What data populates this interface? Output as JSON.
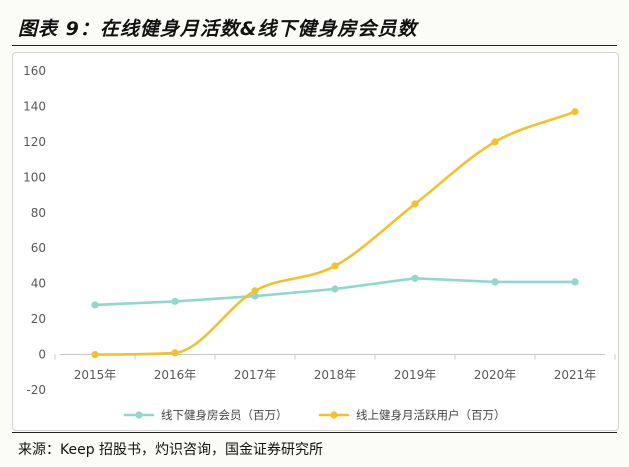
{
  "header": {
    "title": "图表 9：在线健身月活数&线下健身房会员数"
  },
  "footer": {
    "source": "来源：Keep 招股书，灼识咨询，国金证券研究所"
  },
  "colors": {
    "series_1": "#92d6cf",
    "series_2": "#f2c22e",
    "axis": "#c8c8c8",
    "tick_text": "#595959"
  },
  "chart_data": {
    "type": "line",
    "title": "",
    "xlabel": "",
    "ylabel": "",
    "categories": [
      "2015年",
      "2016年",
      "2017年",
      "2018年",
      "2019年",
      "2020年",
      "2021年"
    ],
    "y_ticks": [
      -20,
      0,
      20,
      40,
      60,
      80,
      100,
      120,
      140,
      160
    ],
    "ylim": [
      -20,
      160
    ],
    "grid": false,
    "legend_position": "bottom",
    "series": [
      {
        "name": "线下健身房会员（百万）",
        "color": "#92d6cf",
        "smooth": false,
        "values": [
          28,
          30,
          33,
          37,
          43,
          41,
          41
        ]
      },
      {
        "name": "线上健身月活跃用户（百万）",
        "color": "#f2c22e",
        "smooth": true,
        "values": [
          0,
          1,
          36,
          50,
          85,
          120,
          137
        ]
      }
    ]
  }
}
